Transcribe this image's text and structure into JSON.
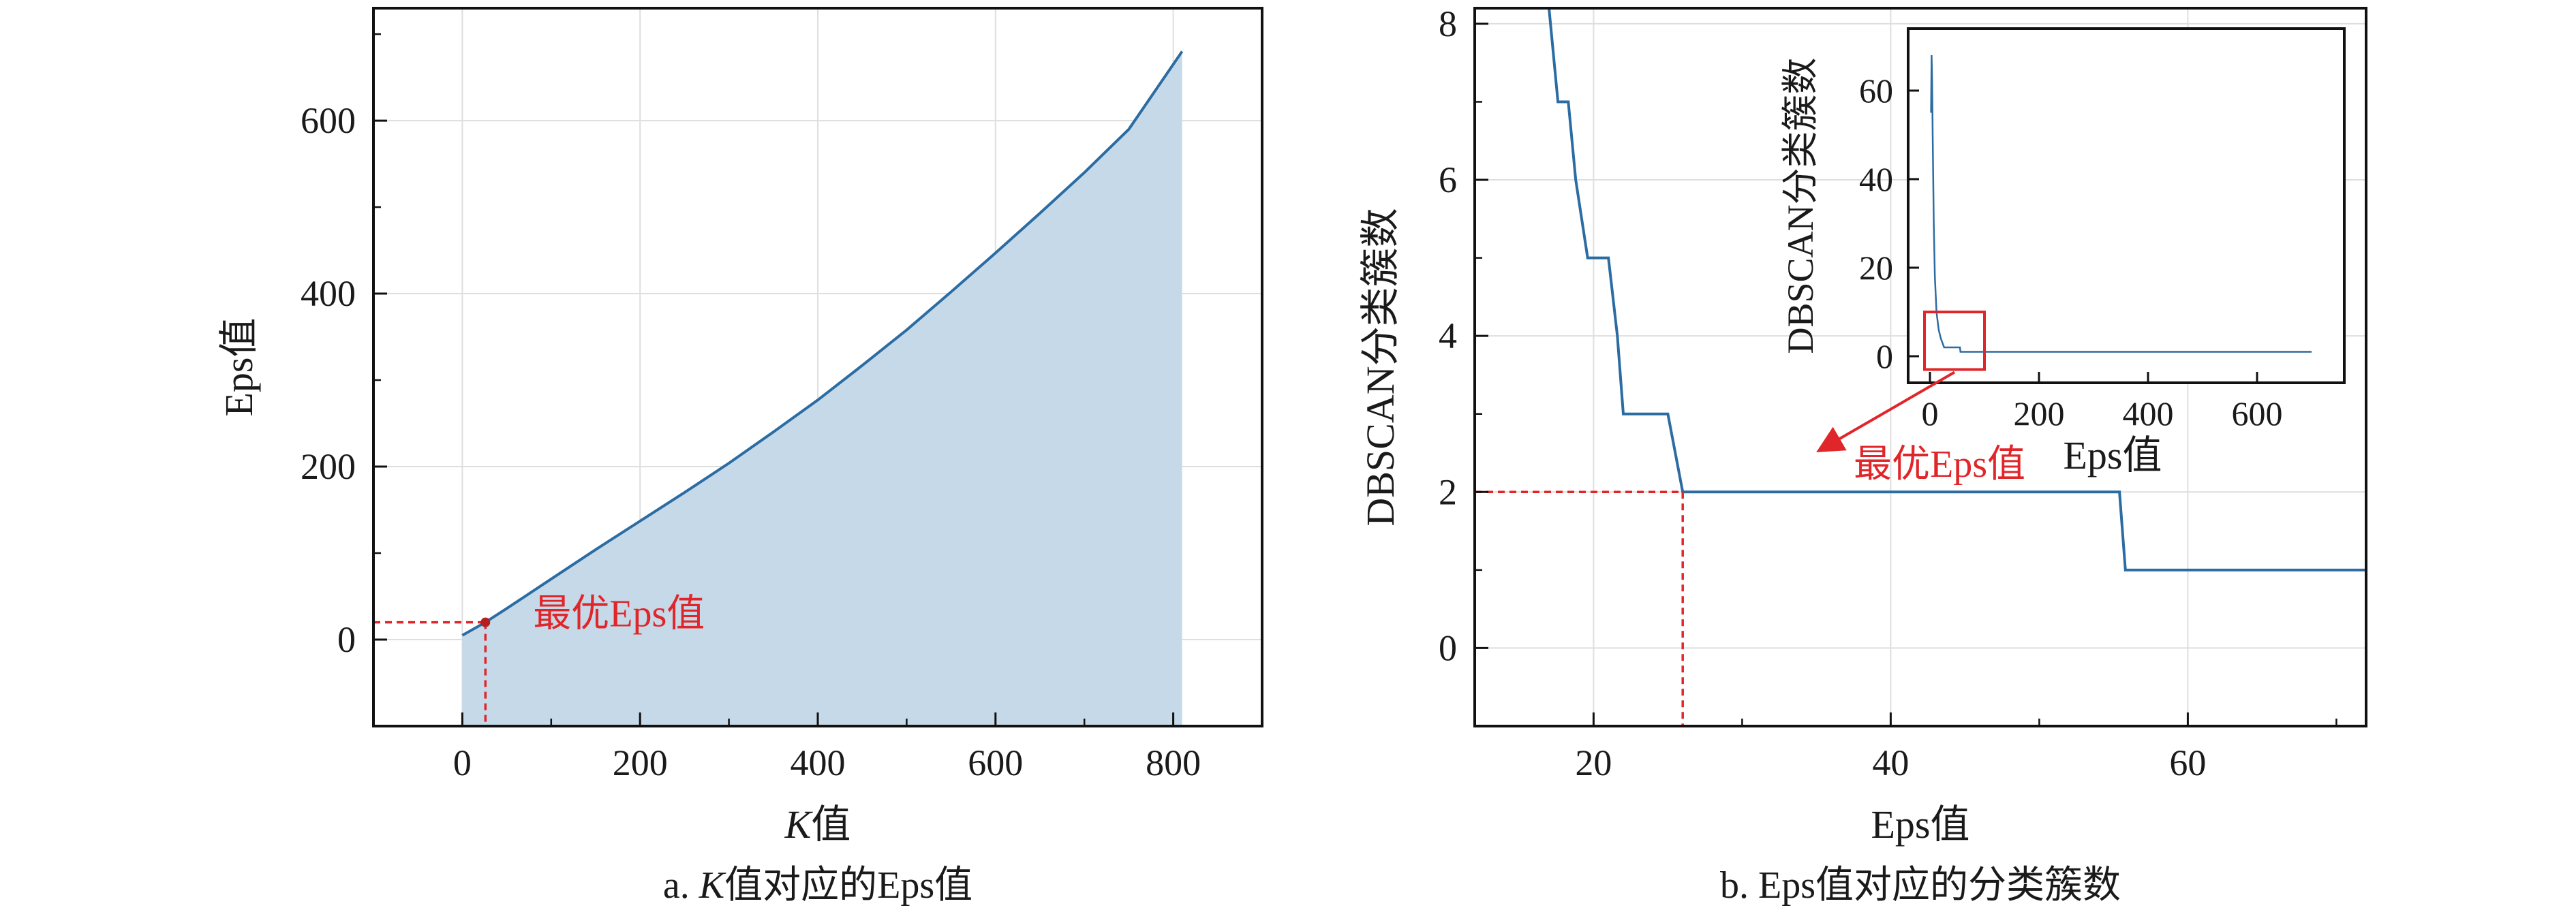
{
  "colors": {
    "line": "#2b6ca3",
    "fill": "#c6d9e8",
    "annotation": "#e0262a",
    "grid": "#dedede",
    "axis": "#111111"
  },
  "captions": {
    "a_prefix": "a. ",
    "a_italic": "K",
    "a_suffix": "值对应的Eps值",
    "b": "b. Eps值对应的分类簇数"
  },
  "chart_data": [
    {
      "id": "a",
      "type": "area",
      "xlabel_italic": "K",
      "xlabel_suffix": "值",
      "ylabel": "Eps值",
      "xlim": [
        -100,
        900
      ],
      "ylim": [
        -100,
        730
      ],
      "xticks": [
        0,
        200,
        400,
        600,
        800
      ],
      "xtick_labels": [
        "0",
        "200",
        "400",
        "600",
        "800"
      ],
      "yticks": [
        0,
        200,
        400,
        600
      ],
      "ytick_labels": [
        "0",
        "200",
        "400",
        "600"
      ],
      "grid": true,
      "series": [
        {
          "x": [
            0,
            26,
            50,
            100,
            150,
            200,
            250,
            300,
            350,
            400,
            450,
            500,
            550,
            600,
            650,
            700,
            750,
            810
          ],
          "y": [
            5,
            20,
            36,
            70,
            104,
            137,
            170,
            204,
            240,
            277,
            317,
            358,
            402,
            447,
            493,
            540,
            590,
            680
          ]
        }
      ],
      "annotation": {
        "text": "最优Eps值",
        "x": 26,
        "y": 20
      }
    },
    {
      "id": "b",
      "type": "line",
      "xlabel": "Eps值",
      "ylabel": "DBSCAN分类簇数",
      "xlim": [
        12,
        72
      ],
      "ylim": [
        -1,
        8.2
      ],
      "xticks": [
        20,
        40,
        60
      ],
      "xtick_labels": [
        "20",
        "40",
        "60"
      ],
      "yticks": [
        0,
        2,
        4,
        6,
        8
      ],
      "ytick_labels": [
        "0",
        "2",
        "4",
        "6",
        "8"
      ],
      "grid": true,
      "series": [
        {
          "x": [
            17.0,
            17.6,
            18.3,
            18.8,
            19.6,
            20.0,
            21.0,
            21.6,
            22.0,
            25.0,
            25.5,
            26.0,
            55.4,
            55.8,
            72.0
          ],
          "y": [
            8.4,
            7.0,
            7.0,
            6.0,
            5.0,
            5.0,
            5.0,
            4.0,
            3.0,
            3.0,
            2.5,
            2.0,
            2.0,
            1.0,
            1.0
          ]
        }
      ],
      "annotation": {
        "text": "最优Eps值",
        "x": 26,
        "y": 2
      },
      "inset": {
        "xlabel": "Eps值",
        "ylabel": "DBSCAN分类簇数",
        "xlim": [
          -40,
          760
        ],
        "ylim": [
          -6,
          74
        ],
        "xticks": [
          0,
          200,
          400,
          600
        ],
        "xtick_labels": [
          "0",
          "200",
          "400",
          "600"
        ],
        "yticks": [
          0,
          20,
          40,
          60
        ],
        "ytick_labels": [
          "0",
          "20",
          "40",
          "60"
        ],
        "series": [
          {
            "x": [
              2,
              3,
              4,
              5,
              7,
              9,
              12,
              16,
              20,
              26,
              35,
              55,
              56,
              700
            ],
            "y": [
              55,
              68,
              62,
              50,
              30,
              18,
              10,
              6,
              4,
              2,
              2,
              2,
              1,
              1
            ]
          }
        ],
        "zoom_box": {
          "x0": -10,
          "x1": 100,
          "y0": -3,
          "y1": 10
        }
      }
    }
  ]
}
